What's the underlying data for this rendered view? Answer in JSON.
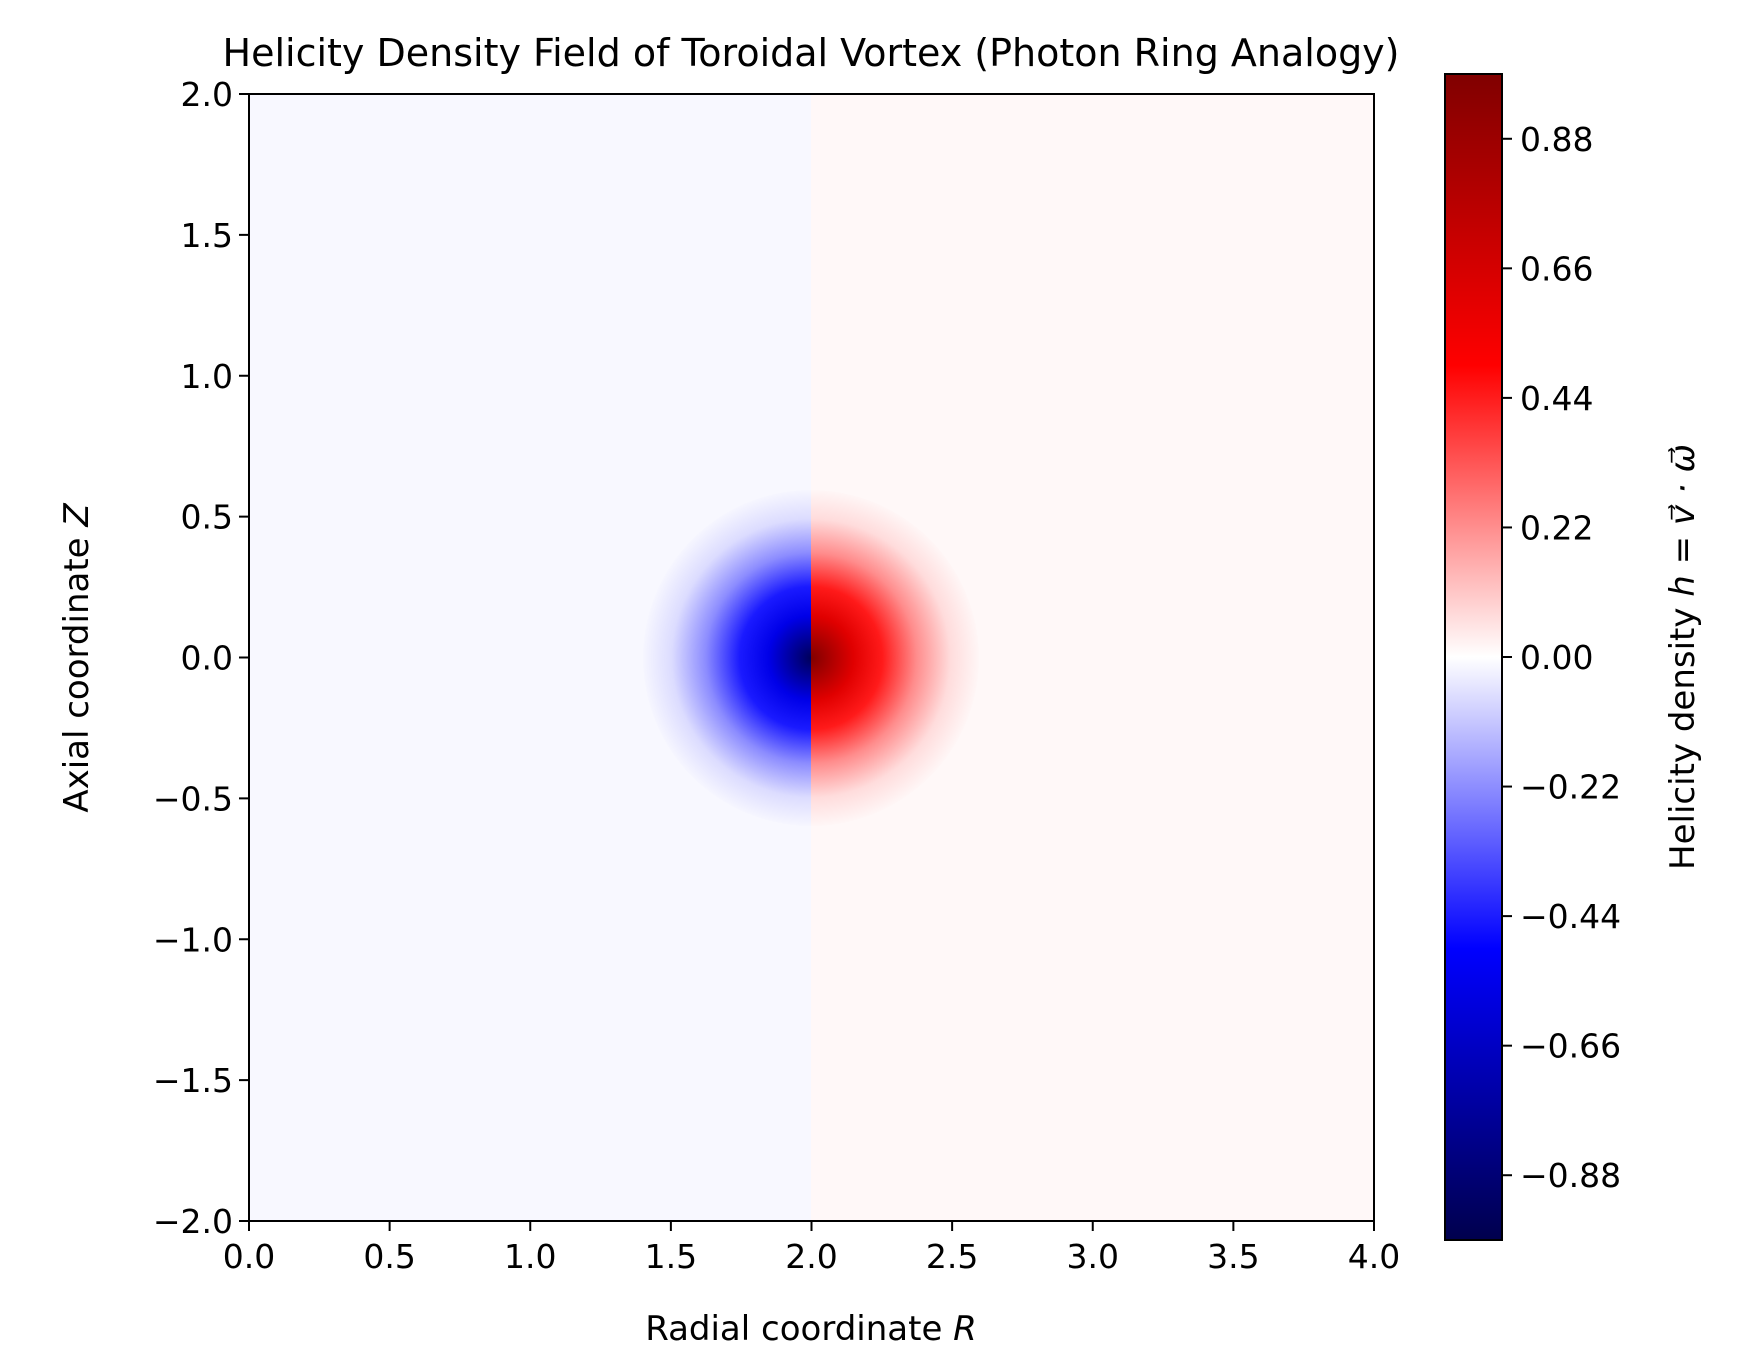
{
  "chart_data": {
    "type": "heatmap",
    "title": "Helicity Density Field of Toroidal Vortex (Photon Ring Analogy)",
    "xlabel_text": "Radial coordinate ",
    "xlabel_var": "R",
    "ylabel_text": "Axial coordinate ",
    "ylabel_var": "Z",
    "xlim": [
      0.0,
      4.0
    ],
    "ylim": [
      -2.0,
      2.0
    ],
    "xticks": [
      "0.0",
      "0.5",
      "1.0",
      "1.5",
      "2.0",
      "2.5",
      "3.0",
      "3.5",
      "4.0"
    ],
    "yticks": [
      "−2.0",
      "−1.5",
      "−1.0",
      "−0.5",
      "0.0",
      "0.5",
      "1.0",
      "1.5",
      "2.0"
    ],
    "field": {
      "description_values": {
        "center": [
          2.0,
          0.0
        ],
        "peak_magnitude": 0.99,
        "sign_left_of_center": -1,
        "sign_right_of_center": 1,
        "core_radius": 0.6,
        "background_magnitude": 0.02
      }
    },
    "colorbar": {
      "label_text": "Helicity density ",
      "label_math": "h = v⃗ · ω⃗",
      "range": [
        -0.99,
        0.99
      ],
      "ticks": [
        "−0.88",
        "−0.66",
        "−0.44",
        "−0.22",
        "0.00",
        "0.22",
        "0.44",
        "0.66",
        "0.88"
      ],
      "colormap": "seismic",
      "colors": {
        "neg_end": "#00004d",
        "neg_mid": "#0000ff",
        "zero": "#ffffff",
        "pos_mid": "#ff0000",
        "pos_end": "#800000"
      }
    },
    "grid": false,
    "legend": "none"
  }
}
